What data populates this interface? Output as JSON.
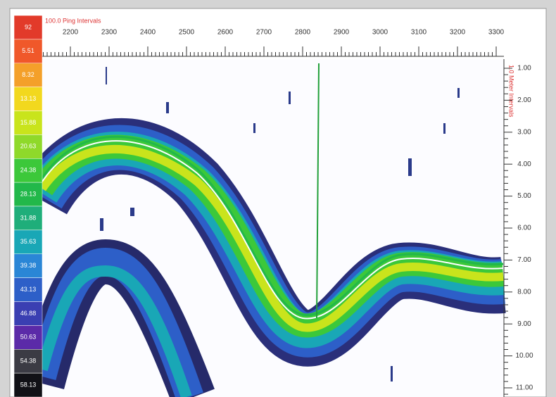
{
  "color_scale": {
    "levels": [
      {
        "label": "92",
        "color": "#e23a2a"
      },
      {
        "label": "5.51",
        "color": "#f0582a"
      },
      {
        "label": "8.32",
        "color": "#f4a02a"
      },
      {
        "label": "13.13",
        "color": "#f2d81e"
      },
      {
        "label": "15.88",
        "color": "#c9e41c"
      },
      {
        "label": "20.63",
        "color": "#8fd92a"
      },
      {
        "label": "24.38",
        "color": "#3cc83a"
      },
      {
        "label": "28.13",
        "color": "#22b84a"
      },
      {
        "label": "31.88",
        "color": "#1fae7a"
      },
      {
        "label": "35.63",
        "color": "#19a7b6"
      },
      {
        "label": "39.38",
        "color": "#2a86d6"
      },
      {
        "label": "43.13",
        "color": "#2d5fc8"
      },
      {
        "label": "46.88",
        "color": "#3a3fb2"
      },
      {
        "label": "50.63",
        "color": "#5b2aa8"
      },
      {
        "label": "54.38",
        "color": "#3b3b44"
      },
      {
        "label": "58.13",
        "color": "#111116"
      }
    ]
  },
  "x_axis": {
    "label": "100.0 Ping Intervals",
    "ticks": [
      "2200",
      "2300",
      "2400",
      "2500",
      "2600",
      "2700",
      "2800",
      "2900",
      "3000",
      "3100",
      "3200",
      "3300"
    ]
  },
  "y_axis": {
    "label": "1.0 Meter Intervals",
    "ticks": [
      "1.00",
      "2.00",
      "3.00",
      "4.00",
      "5.00",
      "6.00",
      "7.00",
      "8.00",
      "9.00",
      "10.00",
      "11.00"
    ]
  }
}
